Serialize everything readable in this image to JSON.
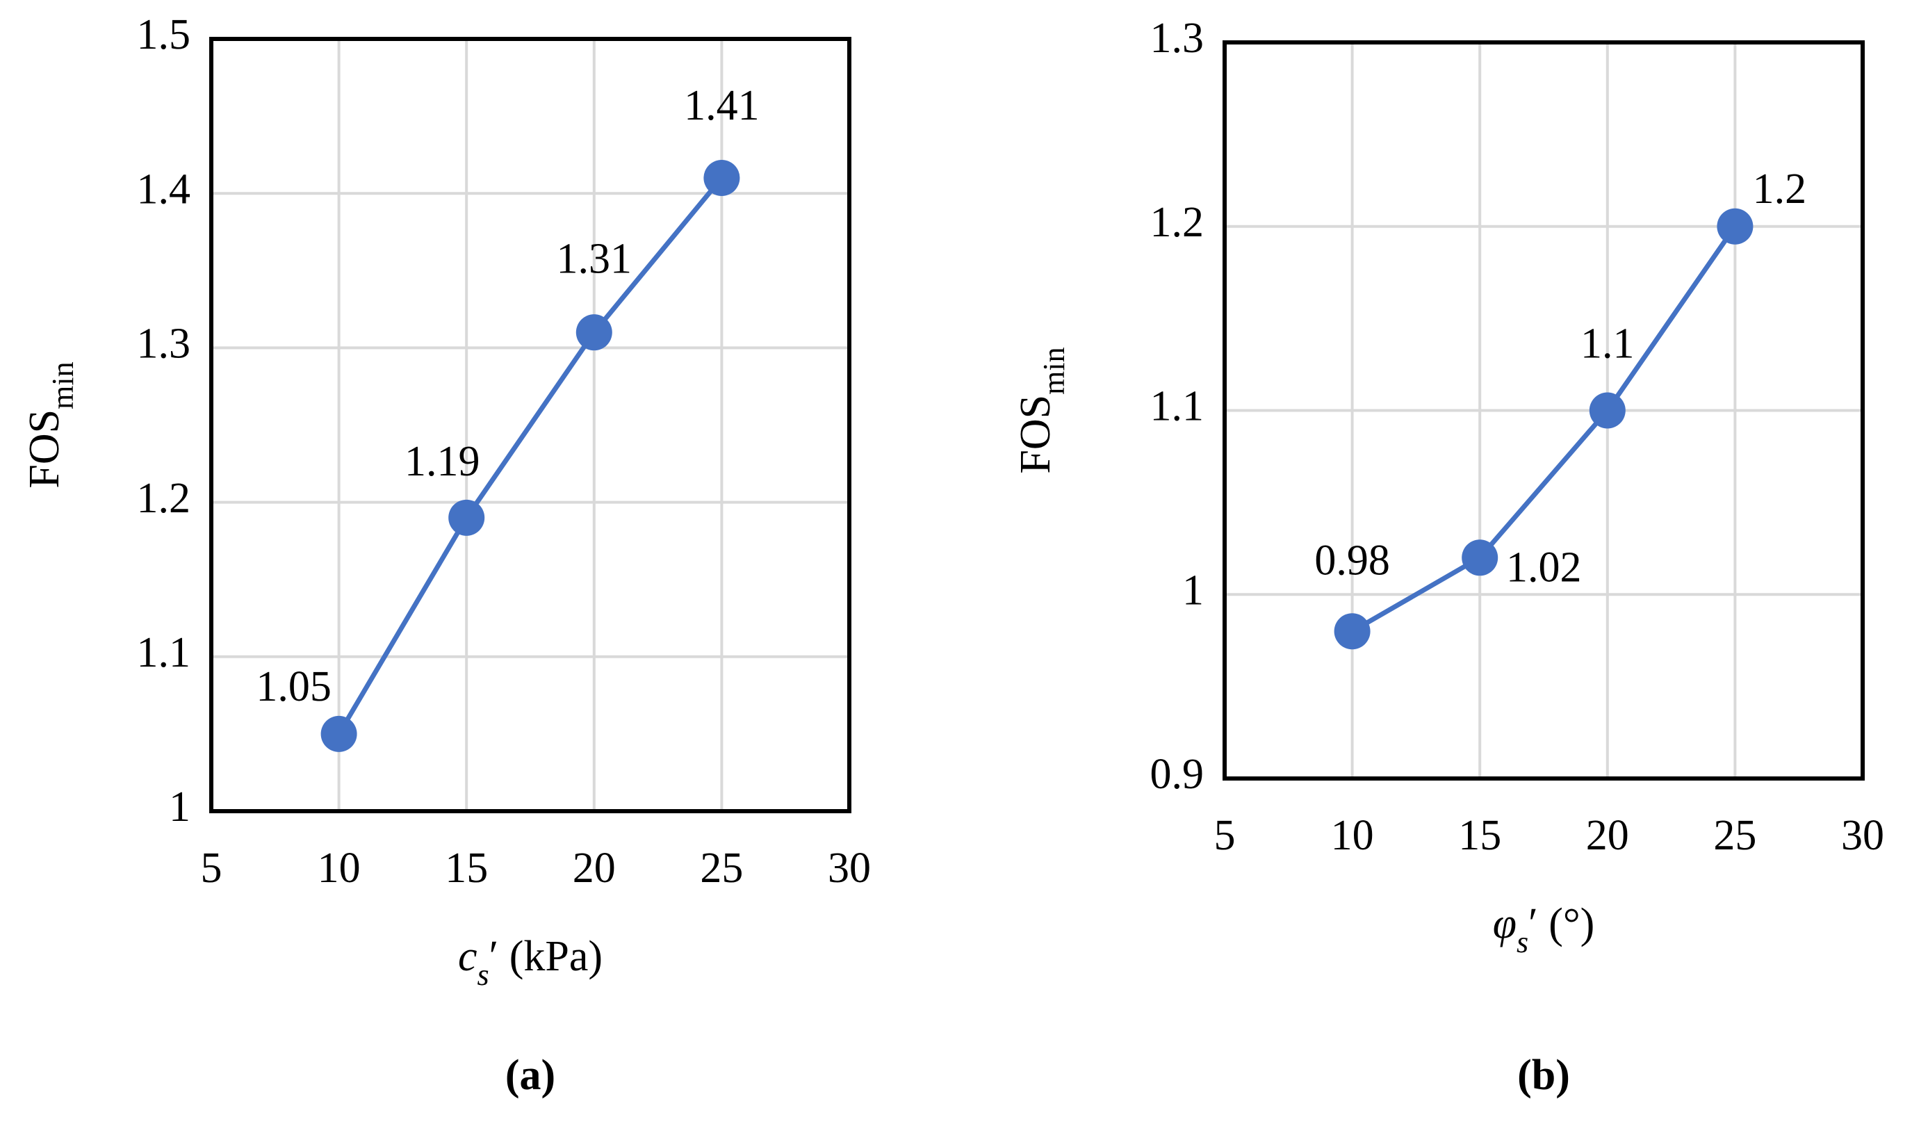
{
  "chart_data": [
    {
      "type": "line",
      "x": [
        10,
        15,
        20,
        25
      ],
      "series": [
        {
          "color": "#4472c4",
          "values": [
            1.05,
            1.19,
            1.31,
            1.41
          ]
        }
      ],
      "xlim": [
        5,
        30
      ],
      "xticks": [
        5,
        10,
        15,
        20,
        25,
        30
      ],
      "ylim": [
        1,
        1.5
      ],
      "yticks": [
        1,
        1.1,
        1.2,
        1.3,
        1.4,
        1.5
      ],
      "grid": true,
      "y_label": {
        "text": "FOS",
        "subscript": "min"
      },
      "x_label": {
        "symbol": "c",
        "subscript": "s",
        "suffix": "′ (kPa)"
      },
      "panel_label": "(a)"
    },
    {
      "type": "line",
      "x": [
        10,
        15,
        20,
        25
      ],
      "series": [
        {
          "color": "#4472c4",
          "values": [
            0.98,
            1.02,
            1.1,
            1.2
          ]
        }
      ],
      "xlim": [
        5,
        30
      ],
      "xticks": [
        5,
        10,
        15,
        20,
        25,
        30
      ],
      "ylim": [
        0.9,
        1.3
      ],
      "yticks": [
        0.9,
        1,
        1.1,
        1.2,
        1.3
      ],
      "grid": true,
      "y_label": {
        "text": "FOS",
        "subscript": "min"
      },
      "x_label": {
        "symbol": "φ",
        "subscript": "s",
        "suffix": "′ (°)"
      },
      "panel_label": "(b)"
    }
  ]
}
